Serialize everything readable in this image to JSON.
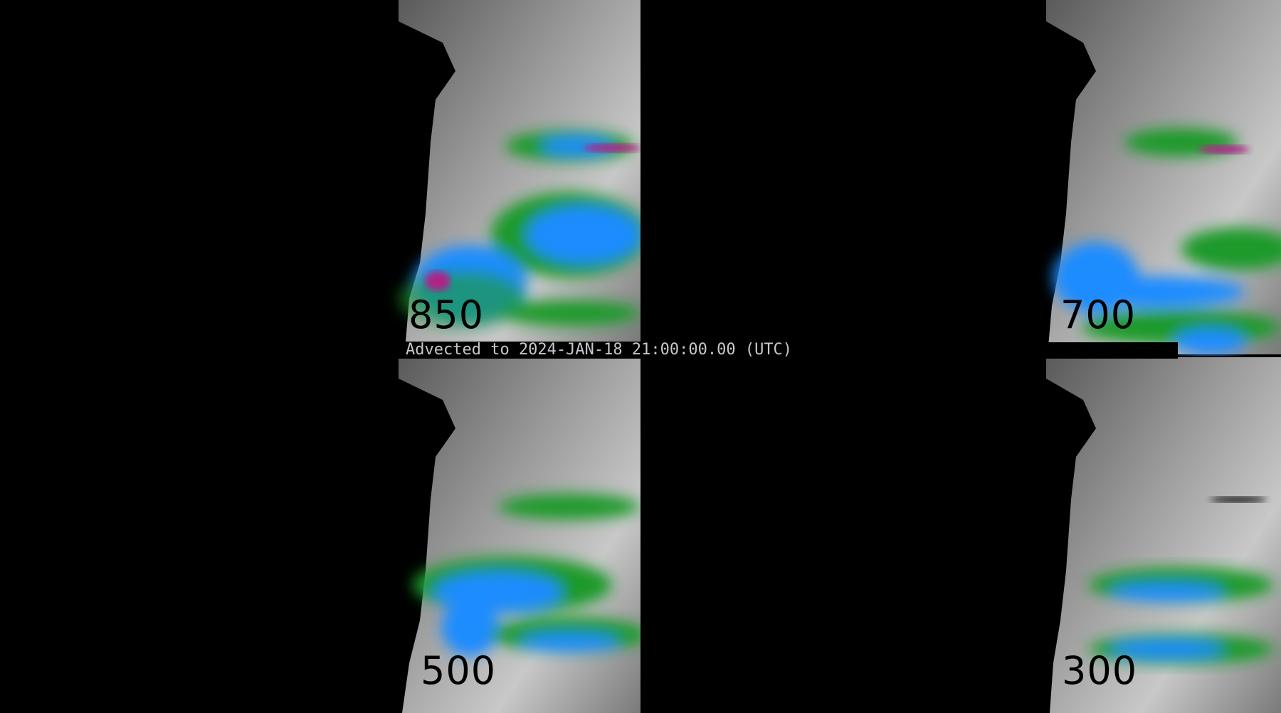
{
  "caption": "Advected to 2024-JAN-18 21:00:00.00 (UTC)",
  "panels": [
    {
      "level": "850"
    },
    {
      "level": "700"
    },
    {
      "level": "500"
    },
    {
      "level": "300"
    }
  ],
  "colors": {
    "background": "#000000",
    "cloud_gray": "#8a8a8a",
    "green": "#1a9a2a",
    "blue": "#1a8cff",
    "cyan": "#22ccff",
    "magenta": "#b0208a"
  }
}
